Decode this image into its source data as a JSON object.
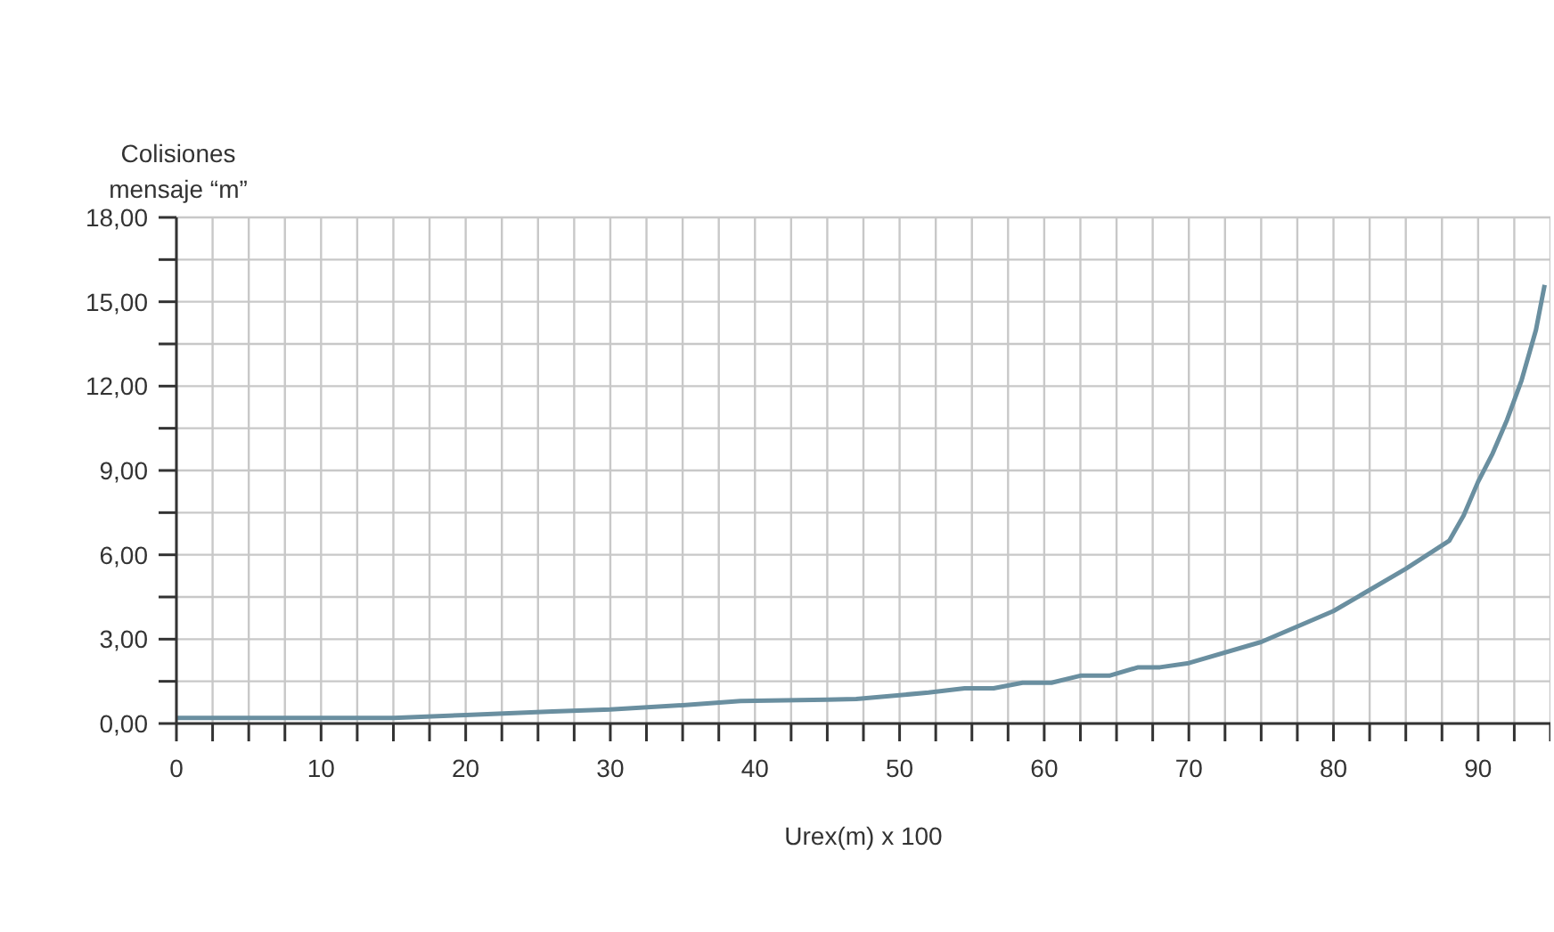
{
  "chart_data": {
    "type": "line",
    "ylabel": "Colisiones mensaje “m”",
    "xlabel": "Urex(m) x 100",
    "x": [
      0,
      15,
      20,
      26,
      30,
      35,
      39,
      45,
      47,
      52,
      54.5,
      56.5,
      58.5,
      60.5,
      62.5,
      64.5,
      66.5,
      68,
      70,
      75,
      80,
      85,
      88,
      89,
      90,
      91,
      92,
      93,
      94,
      94.6
    ],
    "series": [
      {
        "color": "#6a8fa0",
        "values": [
          0.2,
          0.2,
          0.3,
          0.43,
          0.5,
          0.65,
          0.8,
          0.85,
          0.87,
          1.1,
          1.25,
          1.25,
          1.45,
          1.45,
          1.7,
          1.7,
          2.0,
          2.0,
          2.15,
          2.9,
          4.0,
          5.5,
          6.5,
          7.4,
          8.6,
          9.6,
          10.8,
          12.2,
          14.0,
          15.6
        ]
      }
    ],
    "xlim": [
      0,
      95
    ],
    "xticks": [
      0,
      {
        "value": 2.5,
        "label": null
      },
      {
        "value": 5,
        "label": null
      },
      {
        "value": 7.5,
        "label": null
      },
      10,
      {
        "value": 12.5,
        "label": null
      },
      {
        "value": 15,
        "label": null
      },
      {
        "value": 17.5,
        "label": null
      },
      20,
      {
        "value": 22.5,
        "label": null
      },
      {
        "value": 25,
        "label": null
      },
      {
        "value": 27.5,
        "label": null
      },
      30,
      {
        "value": 32.5,
        "label": null
      },
      {
        "value": 35,
        "label": null
      },
      {
        "value": 37.5,
        "label": null
      },
      40,
      {
        "value": 42.5,
        "label": null
      },
      {
        "value": 45,
        "label": null
      },
      {
        "value": 47.5,
        "label": null
      },
      50,
      {
        "value": 52.5,
        "label": null
      },
      {
        "value": 55,
        "label": null
      },
      {
        "value": 57.5,
        "label": null
      },
      60,
      {
        "value": 62.5,
        "label": null
      },
      {
        "value": 65,
        "label": null
      },
      {
        "value": 67.5,
        "label": null
      },
      70,
      {
        "value": 72.5,
        "label": null
      },
      {
        "value": 75,
        "label": null
      },
      {
        "value": 77.5,
        "label": null
      },
      80,
      {
        "value": 82.5,
        "label": null
      },
      {
        "value": 85,
        "label": null
      },
      {
        "value": 87.5,
        "label": null
      },
      90,
      {
        "value": 92.5,
        "label": null
      },
      {
        "value": 95,
        "label": null
      }
    ],
    "ylim": [
      0,
      18
    ],
    "yticks": [
      {
        "value": 0,
        "label": "0,00"
      },
      {
        "value": 1.5,
        "label": null
      },
      {
        "value": 3,
        "label": "3,00"
      },
      {
        "value": 4.5,
        "label": null
      },
      {
        "value": 6,
        "label": "6,00"
      },
      {
        "value": 7.5,
        "label": null
      },
      {
        "value": 9,
        "label": "9,00"
      },
      {
        "value": 10.5,
        "label": null
      },
      {
        "value": 12,
        "label": "12,00"
      },
      {
        "value": 13.5,
        "label": null
      },
      {
        "value": 15,
        "label": "15,00"
      },
      {
        "value": 16.5,
        "label": null
      },
      {
        "value": 18,
        "label": "18,00"
      }
    ],
    "grid": true,
    "marker": "none",
    "line_style": "solid",
    "legend": false
  }
}
